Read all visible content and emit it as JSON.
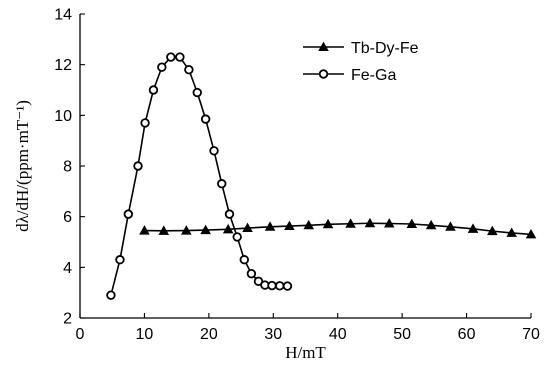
{
  "chart_data": {
    "type": "line",
    "title": "",
    "xlabel": "H/mT",
    "ylabel": "dλ/dH/(ppm·mT⁻¹)",
    "xlim": [
      0,
      70
    ],
    "ylim": [
      2,
      14
    ],
    "x_ticks": [
      0,
      10,
      20,
      30,
      40,
      50,
      60,
      70
    ],
    "y_ticks": [
      2,
      4,
      6,
      8,
      10,
      12,
      14
    ],
    "grid": false,
    "legend_position": "top-right",
    "series": [
      {
        "name": "Tb-Dy-Fe",
        "marker": "filled-triangle",
        "x": [
          10,
          13,
          16.5,
          19.5,
          23,
          26,
          29.5,
          32.5,
          35.5,
          38.5,
          42,
          45,
          48,
          51.5,
          54.5,
          57.5,
          61,
          64,
          67,
          70
        ],
        "y": [
          5.45,
          5.44,
          5.45,
          5.47,
          5.5,
          5.55,
          5.6,
          5.63,
          5.66,
          5.7,
          5.72,
          5.74,
          5.73,
          5.71,
          5.66,
          5.6,
          5.52,
          5.43,
          5.36,
          5.3
        ]
      },
      {
        "name": "Fe-Ga",
        "marker": "open-circle",
        "x": [
          4.8,
          6.2,
          7.5,
          9,
          10.1,
          11.4,
          12.7,
          14.1,
          15.5,
          16.9,
          18.2,
          19.5,
          20.8,
          22,
          23.2,
          24.4,
          25.5,
          26.6,
          27.7,
          28.7,
          29.8,
          31,
          32.2
        ],
        "y": [
          2.9,
          4.3,
          6.1,
          8.0,
          9.7,
          11.0,
          11.9,
          12.3,
          12.3,
          11.8,
          10.9,
          9.85,
          8.6,
          7.3,
          6.1,
          5.2,
          4.3,
          3.75,
          3.45,
          3.3,
          3.28,
          3.27,
          3.26
        ]
      }
    ]
  }
}
